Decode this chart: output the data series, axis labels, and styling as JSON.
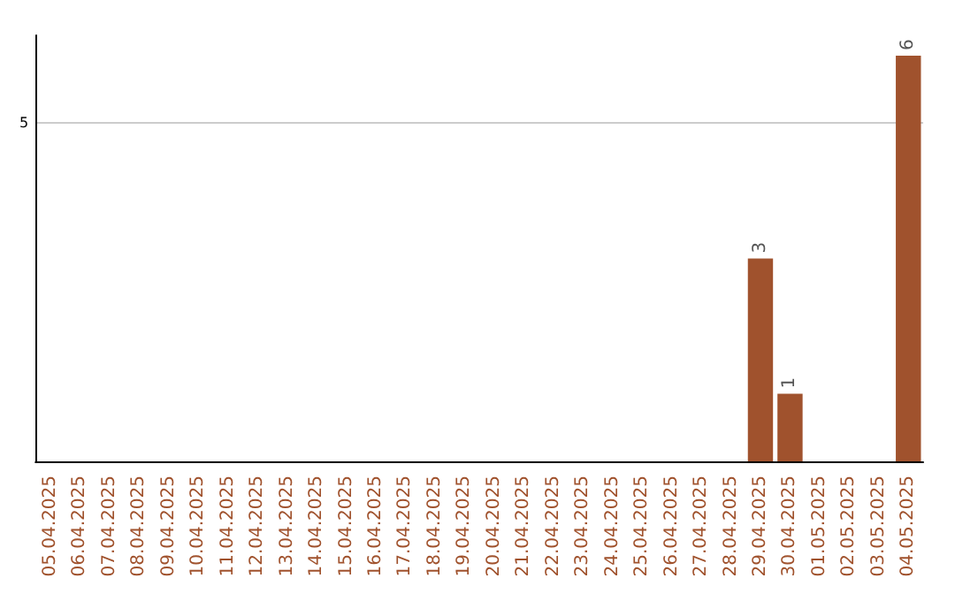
{
  "chart_data": {
    "type": "bar",
    "categories": [
      "05.04.2025",
      "06.04.2025",
      "07.04.2025",
      "08.04.2025",
      "09.04.2025",
      "10.04.2025",
      "11.04.2025",
      "12.04.2025",
      "13.04.2025",
      "14.04.2025",
      "15.04.2025",
      "16.04.2025",
      "17.04.2025",
      "18.04.2025",
      "19.04.2025",
      "20.04.2025",
      "21.04.2025",
      "22.04.2025",
      "23.04.2025",
      "24.04.2025",
      "25.04.2025",
      "26.04.2025",
      "27.04.2025",
      "28.04.2025",
      "29.04.2025",
      "30.04.2025",
      "01.05.2025",
      "02.05.2025",
      "03.05.2025",
      "04.05.2025"
    ],
    "values": [
      null,
      null,
      null,
      null,
      null,
      null,
      null,
      null,
      null,
      null,
      null,
      null,
      null,
      null,
      null,
      null,
      null,
      null,
      null,
      null,
      null,
      null,
      null,
      null,
      3,
      1,
      null,
      null,
      null,
      6
    ],
    "ylim": [
      0,
      6.3
    ],
    "yticks": [
      5
    ],
    "grid": "y",
    "value_labels": [
      null,
      null,
      null,
      null,
      null,
      null,
      null,
      null,
      null,
      null,
      null,
      null,
      null,
      null,
      null,
      null,
      null,
      null,
      null,
      null,
      null,
      null,
      null,
      null,
      "3",
      "1",
      null,
      null,
      null,
      "6"
    ],
    "color": "#a0522d"
  }
}
